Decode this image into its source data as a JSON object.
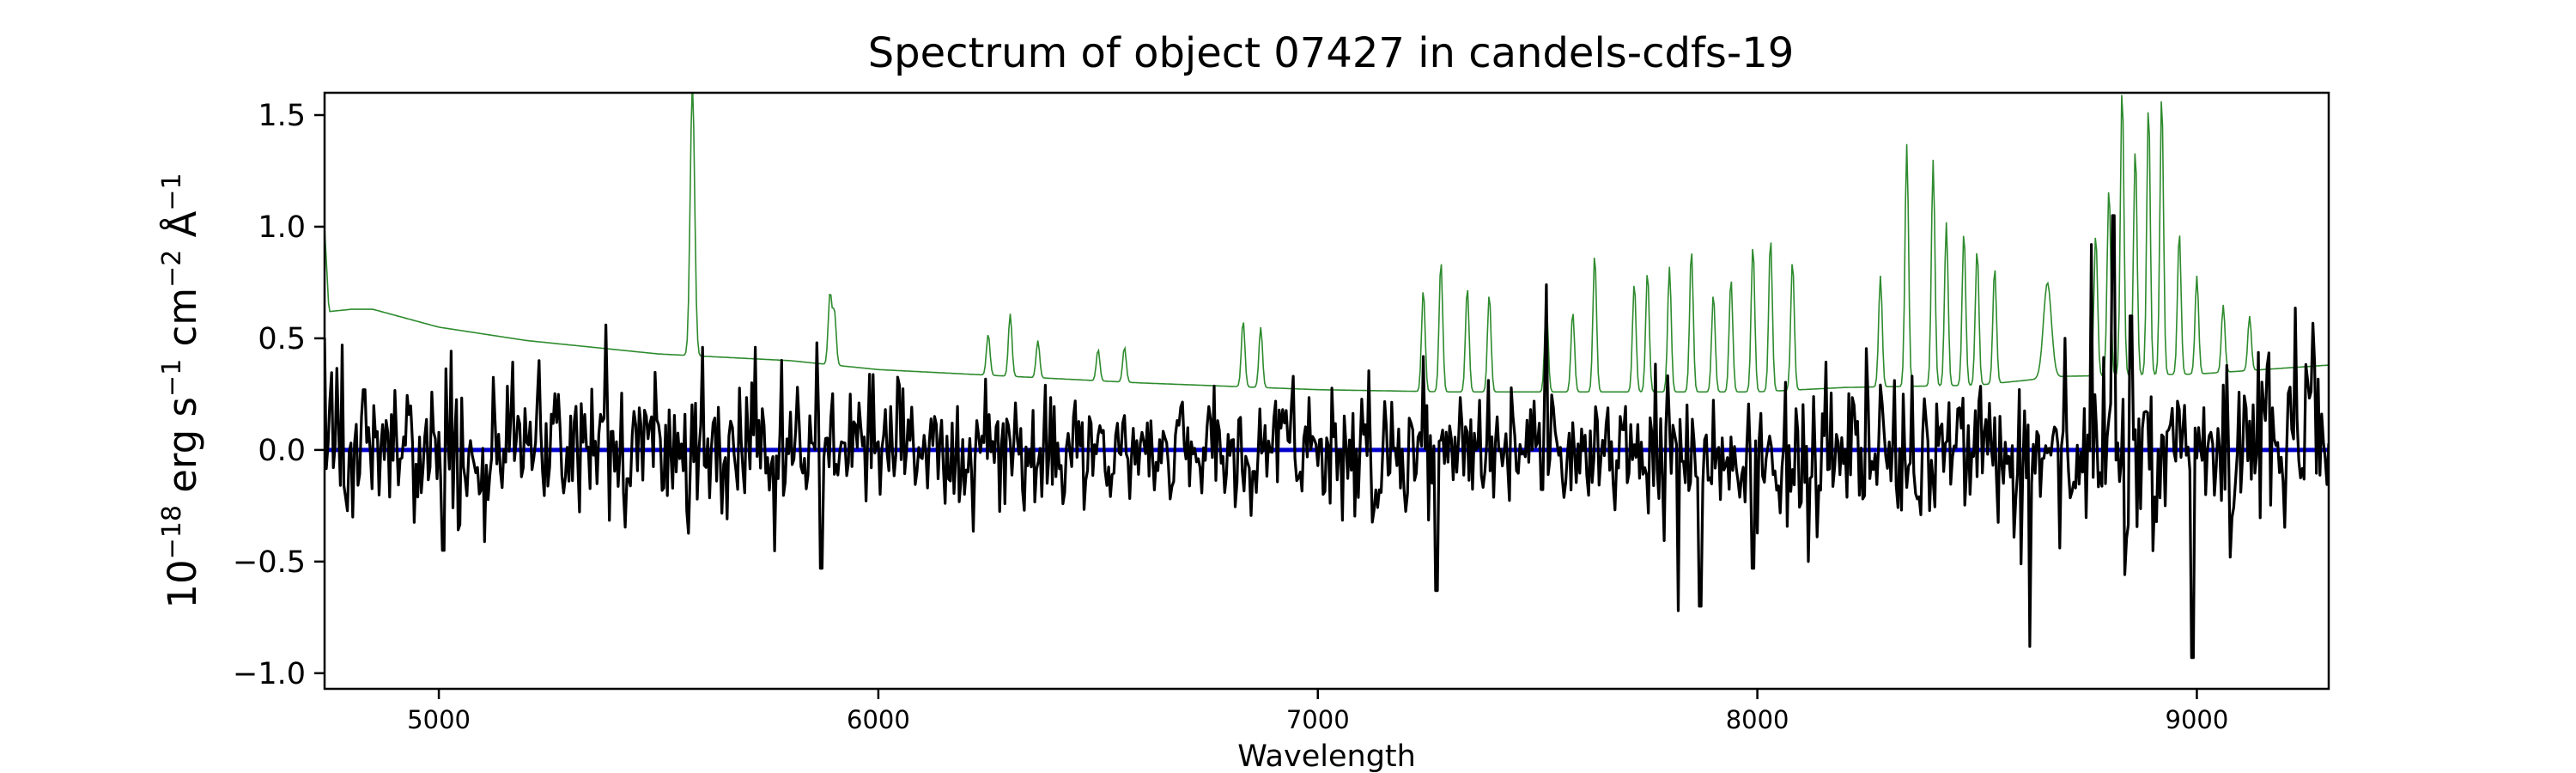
{
  "chart_data": {
    "type": "line",
    "title": "Spectrum of object 07427 in candels-cdfs-19",
    "xlabel": "Wavelength",
    "ylabel": {
      "base": "10",
      "exp1": "−18",
      "unit1": " erg s",
      "exp2": "−1",
      "unit2": " cm",
      "exp3": "−2",
      "unit3": " Å",
      "exp4": "−1"
    },
    "xlim": [
      4740,
      9300
    ],
    "ylim": [
      -1.07,
      1.6
    ],
    "xticks": [
      5000,
      6000,
      7000,
      8000,
      9000
    ],
    "xtick_labels": [
      "5000",
      "6000",
      "7000",
      "8000",
      "9000"
    ],
    "yticks": [
      -1.0,
      -0.5,
      0.0,
      0.5,
      1.0,
      1.5
    ],
    "ytick_labels": [
      "−1.0",
      "−0.5",
      "0.0",
      "0.5",
      "1.0",
      "1.5"
    ],
    "grid": false,
    "series": [
      {
        "id": "sky",
        "color": "#2e8b2e",
        "continuum": [
          [
            4740,
            1.0
          ],
          [
            4750,
            0.62
          ],
          [
            4800,
            0.63
          ],
          [
            4850,
            0.63
          ],
          [
            5000,
            0.55
          ],
          [
            5200,
            0.49
          ],
          [
            5500,
            0.43
          ],
          [
            5800,
            0.4
          ],
          [
            6000,
            0.36
          ],
          [
            6300,
            0.33
          ],
          [
            6600,
            0.3
          ],
          [
            7000,
            0.27
          ],
          [
            7300,
            0.26
          ],
          [
            7600,
            0.26
          ],
          [
            8000,
            0.26
          ],
          [
            8200,
            0.28
          ],
          [
            8500,
            0.29
          ],
          [
            8700,
            0.33
          ],
          [
            9000,
            0.34
          ],
          [
            9300,
            0.38
          ]
        ],
        "lines": [
          [
            5577,
            1.65,
            5
          ],
          [
            5890,
            0.7,
            4
          ],
          [
            5900,
            0.62,
            4
          ],
          [
            6250,
            0.52,
            4
          ],
          [
            6300,
            0.61,
            4
          ],
          [
            6363,
            0.49,
            4
          ],
          [
            6500,
            0.45,
            4
          ],
          [
            6560,
            0.46,
            4
          ],
          [
            6830,
            0.58,
            4
          ],
          [
            6870,
            0.55,
            4
          ],
          [
            7240,
            0.72,
            4
          ],
          [
            7280,
            0.85,
            4
          ],
          [
            7340,
            0.73,
            4
          ],
          [
            7390,
            0.7,
            4
          ],
          [
            7520,
            0.66,
            4
          ],
          [
            7580,
            0.62,
            4
          ],
          [
            7630,
            0.88,
            4
          ],
          [
            7720,
            0.75,
            4
          ],
          [
            7750,
            0.8,
            4
          ],
          [
            7800,
            0.82,
            4
          ],
          [
            7850,
            0.9,
            4
          ],
          [
            7900,
            0.7,
            4
          ],
          [
            7940,
            0.77,
            4
          ],
          [
            7990,
            0.92,
            4
          ],
          [
            8030,
            0.95,
            4
          ],
          [
            8080,
            0.85,
            4
          ],
          [
            8280,
            0.78,
            4
          ],
          [
            8340,
            1.37,
            4
          ],
          [
            8400,
            1.3,
            4
          ],
          [
            8430,
            1.02,
            4
          ],
          [
            8470,
            0.98,
            4
          ],
          [
            8500,
            0.9,
            4
          ],
          [
            8540,
            0.82,
            4
          ],
          [
            8660,
            0.75,
            9
          ],
          [
            8770,
            0.97,
            4
          ],
          [
            8800,
            1.18,
            4
          ],
          [
            8830,
            1.63,
            4
          ],
          [
            8860,
            1.36,
            4
          ],
          [
            8890,
            1.55,
            4
          ],
          [
            8920,
            1.6,
            4
          ],
          [
            8960,
            0.98,
            4
          ],
          [
            9000,
            0.78,
            4
          ],
          [
            9060,
            0.65,
            4
          ],
          [
            9120,
            0.6,
            4
          ]
        ]
      },
      {
        "id": "zero",
        "color": "#0000cc",
        "y": 0.0
      },
      {
        "id": "flux",
        "color": "#000000",
        "sigma_base": 0.16,
        "sigma_red": 0.1,
        "red_offset": 0.12,
        "features": [
          [
            4780,
            0.47
          ],
          [
            4830,
            0.27
          ],
          [
            5380,
            0.56
          ],
          [
            5600,
            0.46
          ],
          [
            5720,
            0.46
          ],
          [
            5860,
            0.48
          ],
          [
            6380,
            0.29
          ],
          [
            7520,
            0.74
          ],
          [
            8700,
            0.5
          ],
          [
            8760,
            0.92
          ],
          [
            8810,
            1.05
          ],
          [
            8850,
            0.6
          ],
          [
            5010,
            -0.45
          ],
          [
            5870,
            -0.53
          ],
          [
            7270,
            -0.63
          ],
          [
            7820,
            -0.72
          ],
          [
            7870,
            -0.7
          ],
          [
            7990,
            -0.53
          ],
          [
            8620,
            -0.88
          ],
          [
            8990,
            -0.93
          ]
        ]
      }
    ]
  }
}
